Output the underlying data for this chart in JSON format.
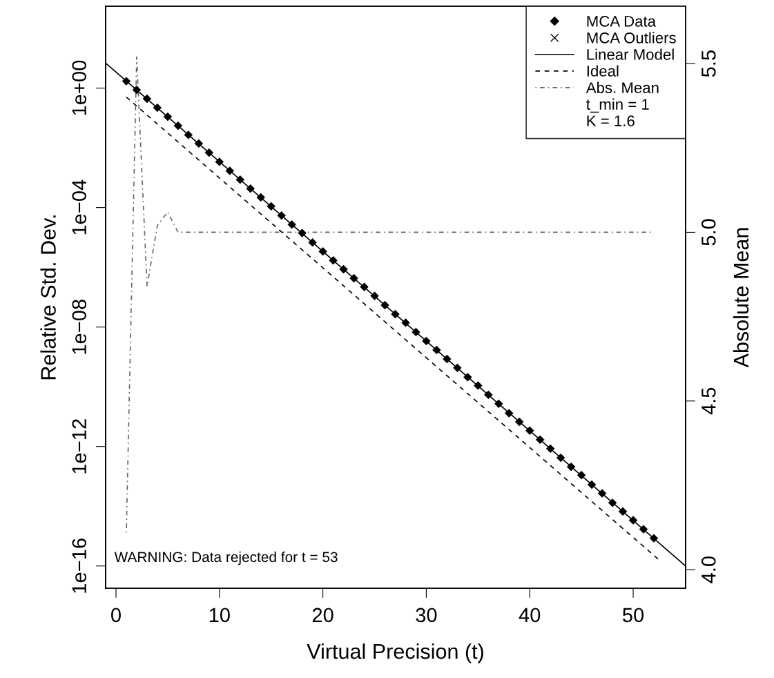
{
  "chart_data": {
    "type": "line",
    "xlabel": "Virtual Precision (t)",
    "ylabel": "Relative Std. Dev.",
    "y2label": "Absolute Mean",
    "xlim": [
      -1,
      55.07
    ],
    "xticks": [
      0,
      10,
      20,
      30,
      40,
      50
    ],
    "ylim": [
      1.8e-17,
      550
    ],
    "yticks": [
      {
        "value": 1e-16,
        "label": "1e−16"
      },
      {
        "value": 1e-12,
        "label": "1e−12"
      },
      {
        "value": 1e-08,
        "label": "1e−08"
      },
      {
        "value": 0.0001,
        "label": "1e−04"
      },
      {
        "value": 1,
        "label": "1e+00"
      }
    ],
    "y2lim": [
      3.945,
      5.67
    ],
    "y2ticks": [
      {
        "value": 4,
        "label": "4.0"
      },
      {
        "value": 4.5,
        "label": "4.5"
      },
      {
        "value": 5,
        "label": "5.0"
      },
      {
        "value": 5.5,
        "label": "5.5"
      }
    ],
    "log": "y",
    "legend": "top right",
    "annotations": [
      "t_min = 1",
      "K = 1.6",
      "WARNING: Data rejected for t = 53"
    ],
    "series": [
      {
        "name": "MCA Data",
        "type": "scatter",
        "marker": "diamond",
        "color": "#000000",
        "x": [
          1,
          2,
          3,
          4,
          5,
          6,
          7,
          8,
          9,
          10,
          11,
          12,
          13,
          14,
          15,
          16,
          17,
          18,
          19,
          20,
          21,
          22,
          23,
          24,
          25,
          26,
          27,
          28,
          29,
          30,
          31,
          32,
          33,
          34,
          35,
          36,
          37,
          38,
          39,
          40,
          41,
          42,
          43,
          44,
          45,
          46,
          47,
          48,
          49,
          50,
          51,
          52
        ],
        "values": [
          1.7,
          0.87,
          0.44,
          0.22,
          0.11,
          0.055,
          0.027,
          0.014,
          0.0069,
          0.0034,
          0.0017,
          0.00086,
          0.00043,
          0.00022,
          0.00011,
          5.4e-05,
          2.7e-05,
          1.4e-05,
          6.8e-06,
          3.4e-06,
          1.7e-06,
          8.6e-07,
          4.3e-07,
          2.2e-07,
          1.1e-07,
          5.4e-08,
          2.7e-08,
          1.4e-08,
          6.8e-09,
          3.4e-09,
          1.7e-09,
          8.5e-10,
          4.3e-10,
          2.1e-10,
          1.1e-10,
          5.4e-11,
          2.7e-11,
          1.3e-11,
          6.7e-12,
          3.4e-12,
          1.7e-12,
          8.5e-13,
          4.2e-13,
          2.1e-13,
          1.1e-13,
          5.3e-14,
          2.7e-14,
          1.3e-14,
          6.7e-15,
          3.4e-15,
          1.7e-15,
          8.5e-16
        ]
      },
      {
        "name": "MCA Outliers",
        "type": "scatter",
        "marker": "cross",
        "color": "#000000"
      },
      {
        "name": "Linear Model",
        "line_style": "solid",
        "color": "#000000",
        "x": [
          -1,
          55.07
        ],
        "values": [
          6.9,
          1e-16
        ]
      },
      {
        "name": "Ideal",
        "line_style": "dashed",
        "color": "#000000",
        "x": [
          1,
          52.5
        ],
        "values": [
          0.5,
          1.6e-16
        ]
      },
      {
        "name": "Abs. Mean",
        "line_style": "dashdot",
        "axis": "y2",
        "color": "#666666",
        "x": [
          1,
          2,
          3,
          4,
          5,
          6,
          7,
          8,
          9,
          10,
          11,
          12,
          13,
          14,
          15,
          16,
          17,
          18,
          19,
          20,
          21,
          22,
          23,
          24,
          25,
          26,
          27,
          28,
          29,
          30,
          31,
          32,
          33,
          34,
          35,
          36,
          37,
          38,
          39,
          40,
          41,
          42,
          43,
          44,
          45,
          46,
          47,
          48,
          49,
          50,
          51,
          52
        ],
        "values": [
          4.11,
          5.52,
          4.84,
          5.02,
          5.06,
          5.0,
          5.0,
          5.0,
          5.0,
          5.0,
          5.0,
          5.0,
          5.0,
          5.0,
          5.0,
          5.0,
          5.0,
          5.0,
          5.0,
          5.0,
          5.0,
          5.0,
          5.0,
          5.0,
          5.0,
          5.0,
          5.0,
          5.0,
          5.0,
          5.0,
          5.0,
          5.0,
          5.0,
          5.0,
          5.0,
          5.0,
          5.0,
          5.0,
          5.0,
          5.0,
          5.0,
          5.0,
          5.0,
          5.0,
          5.0,
          5.0,
          5.0,
          5.0,
          5.0,
          5.0,
          5.0,
          5.0
        ]
      }
    ]
  }
}
